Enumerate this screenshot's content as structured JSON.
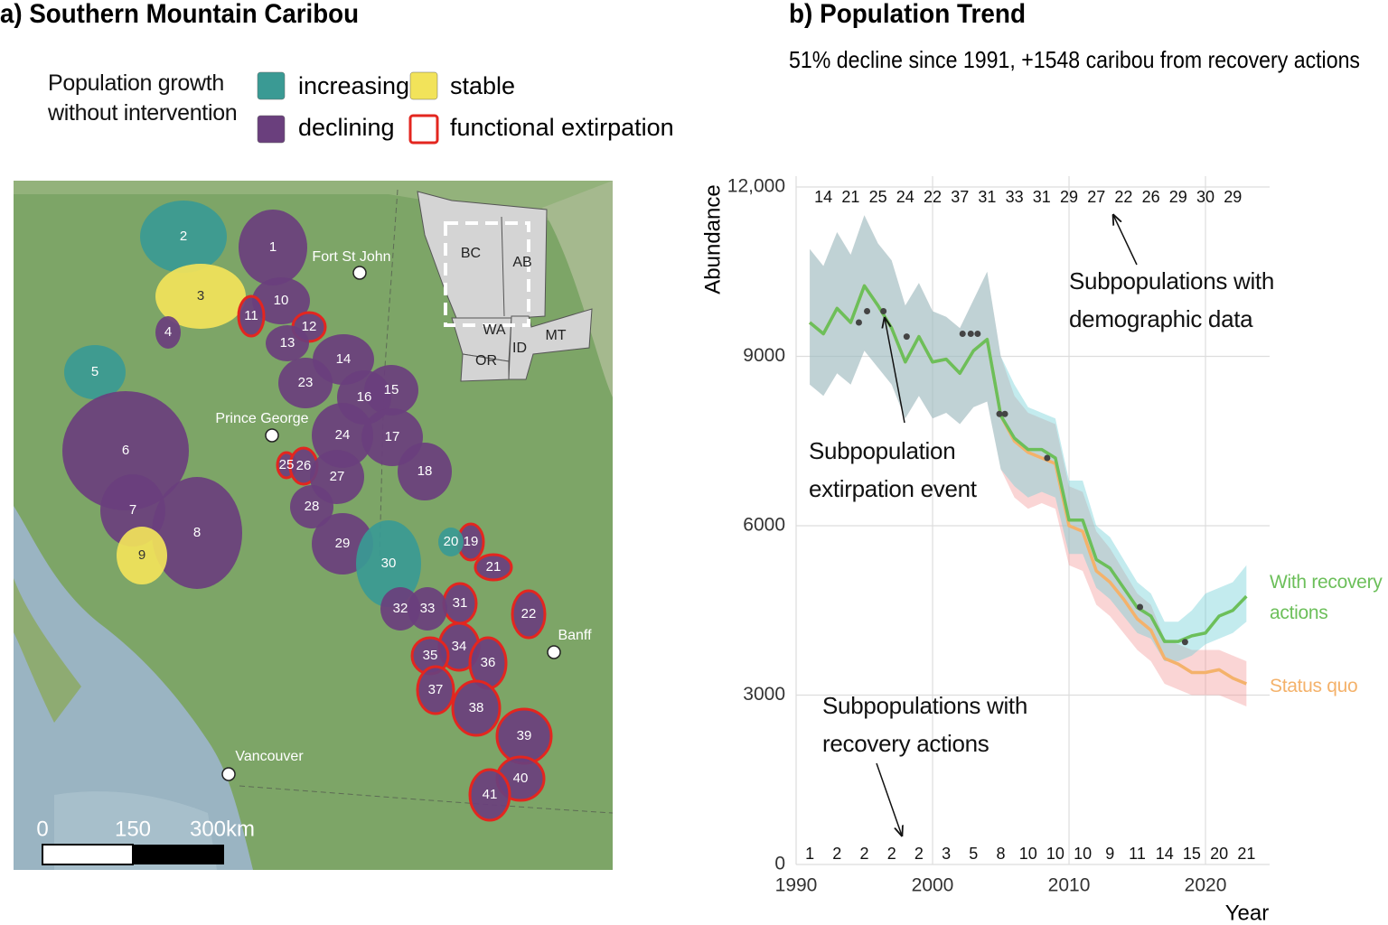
{
  "map": {
    "title": "a) Southern Mountain Caribou",
    "legend_title": "Population growth without intervention",
    "legend": [
      {
        "label": "increasing",
        "color": "#3a9a94"
      },
      {
        "label": "stable",
        "color": "#f2e35a"
      },
      {
        "label": "declining",
        "color": "#6a3f7d"
      },
      {
        "label": "functional extirpation",
        "color": "#e3261f"
      }
    ],
    "regions": [
      {
        "label": "1",
        "status": "declining"
      },
      {
        "label": "2",
        "status": "increasing"
      },
      {
        "label": "3",
        "status": "stable"
      },
      {
        "label": "4",
        "status": "declining"
      },
      {
        "label": "5",
        "status": "increasing"
      },
      {
        "label": "6",
        "status": "declining"
      },
      {
        "label": "7",
        "status": "declining"
      },
      {
        "label": "8",
        "status": "declining"
      },
      {
        "label": "9",
        "status": "stable"
      },
      {
        "label": "10",
        "status": "declining"
      },
      {
        "label": "11",
        "status": "functional extirpation"
      },
      {
        "label": "12",
        "status": "functional extirpation"
      },
      {
        "label": "13",
        "status": "declining"
      },
      {
        "label": "14",
        "status": "declining"
      },
      {
        "label": "15",
        "status": "declining"
      },
      {
        "label": "16",
        "status": "declining"
      },
      {
        "label": "17",
        "status": "declining"
      },
      {
        "label": "18",
        "status": "declining"
      },
      {
        "label": "19",
        "status": "functional extirpation"
      },
      {
        "label": "20",
        "status": "increasing"
      },
      {
        "label": "21",
        "status": "functional extirpation"
      },
      {
        "label": "22",
        "status": "functional extirpation"
      },
      {
        "label": "23",
        "status": "declining"
      },
      {
        "label": "24",
        "status": "declining"
      },
      {
        "label": "25",
        "status": "functional extirpation"
      },
      {
        "label": "26",
        "status": "functional extirpation"
      },
      {
        "label": "27",
        "status": "declining"
      },
      {
        "label": "28",
        "status": "declining"
      },
      {
        "label": "29",
        "status": "declining"
      },
      {
        "label": "30",
        "status": "increasing"
      },
      {
        "label": "31",
        "status": "functional extirpation"
      },
      {
        "label": "32",
        "status": "declining"
      },
      {
        "label": "33",
        "status": "declining"
      },
      {
        "label": "34",
        "status": "functional extirpation"
      },
      {
        "label": "35",
        "status": "functional extirpation"
      },
      {
        "label": "36",
        "status": "functional extirpation"
      },
      {
        "label": "37",
        "status": "functional extirpation"
      },
      {
        "label": "38",
        "status": "functional extirpation"
      },
      {
        "label": "39",
        "status": "functional extirpation"
      },
      {
        "label": "40",
        "status": "functional extirpation"
      },
      {
        "label": "41",
        "status": "functional extirpation"
      }
    ],
    "cities": [
      "Fort St John",
      "Prince George",
      "Vancouver",
      "Banff"
    ],
    "inset_labels": [
      "BC",
      "AB",
      "WA",
      "ID",
      "MT",
      "OR"
    ],
    "scale_labels": [
      "0",
      "150",
      "300km"
    ]
  },
  "chart_data": {
    "type": "line",
    "title": "b) Population Trend",
    "subtitle": "51% decline since 1991, +1548 caribou from recovery actions",
    "y_label": "Abundance",
    "x_label": "Year",
    "xlim": [
      1990,
      2024.7
    ],
    "ylim": [
      0,
      12000
    ],
    "xticks": [
      1990,
      2000,
      2010,
      2020
    ],
    "yticks": [
      0,
      3000,
      6000,
      9000,
      {
        "value": 12000,
        "label": "12,000"
      }
    ],
    "grid": true,
    "x": [
      1991,
      1992,
      1993,
      1994,
      1995,
      1996,
      1997,
      1998,
      1999,
      2000,
      2001,
      2002,
      2003,
      2004,
      2005,
      2006,
      2007,
      2008,
      2009,
      2010,
      2011,
      2012,
      2013,
      2014,
      2015,
      2016,
      2017,
      2018,
      2019,
      2020,
      2021,
      2022,
      2023
    ],
    "series": [
      {
        "name": "With recovery actions",
        "color": "#6cbf5a",
        "band_color": "#6fcfd6",
        "values": [
          9600,
          9400,
          9850,
          9600,
          10250,
          9900,
          9500,
          8900,
          9350,
          8900,
          8950,
          8700,
          9100,
          9300,
          7950,
          7550,
          7350,
          7350,
          7200,
          6100,
          6100,
          5400,
          5250,
          4900,
          4550,
          4400,
          3950,
          3950,
          4050,
          4100,
          4400,
          4500,
          4750
        ],
        "upper": [
          10900,
          10600,
          11200,
          10800,
          11500,
          11000,
          10700,
          9900,
          10300,
          9800,
          9700,
          9500,
          10000,
          10500,
          9000,
          8500,
          8100,
          8000,
          7900,
          6800,
          6800,
          6000,
          5800,
          5400,
          5000,
          4800,
          4300,
          4300,
          4500,
          4800,
          4900,
          5000,
          5300
        ],
        "lower": [
          8500,
          8300,
          8700,
          8500,
          9100,
          8800,
          8500,
          7900,
          8300,
          7900,
          8000,
          7800,
          8100,
          8200,
          7000,
          6700,
          6500,
          6600,
          6500,
          5500,
          5500,
          4900,
          4700,
          4400,
          4100,
          4000,
          3600,
          3600,
          3700,
          3900,
          4000,
          4100,
          4300
        ]
      },
      {
        "name": "Status quo",
        "color": "#f4b26b",
        "band_color": "#f29a9a",
        "values": [
          9600,
          9400,
          9850,
          9600,
          10250,
          9900,
          9500,
          8900,
          9350,
          8900,
          8950,
          8700,
          9100,
          9300,
          7950,
          7500,
          7300,
          7200,
          7100,
          6000,
          5900,
          5200,
          5000,
          4700,
          4350,
          4150,
          3650,
          3550,
          3400,
          3400,
          3450,
          3300,
          3200
        ],
        "upper": [
          10900,
          10600,
          11200,
          10800,
          11500,
          11000,
          10700,
          9900,
          10300,
          9800,
          9700,
          9500,
          10000,
          10500,
          9000,
          8300,
          8000,
          7900,
          7800,
          6700,
          6600,
          5900,
          5600,
          5200,
          4800,
          4600,
          4000,
          3900,
          3800,
          3800,
          3800,
          3700,
          3600
        ],
        "lower": [
          8500,
          8300,
          8700,
          8500,
          9100,
          8800,
          8500,
          7900,
          8300,
          7900,
          8000,
          7800,
          8100,
          8200,
          7000,
          6500,
          6300,
          6400,
          6300,
          5300,
          5200,
          4600,
          4400,
          4100,
          3800,
          3600,
          3200,
          3100,
          3000,
          3000,
          3000,
          2900,
          2800
        ]
      }
    ],
    "events": {
      "color": "#444444",
      "x": [
        1994.6,
        1995.2,
        1996.4,
        1998.1,
        2002.2,
        2002.8,
        2003.3,
        2004.9,
        2005.3,
        2008.4,
        2015.2,
        2018.5
      ],
      "y": [
        9600,
        9800,
        9800,
        9350,
        9400,
        9400,
        9400,
        7980,
        7980,
        7200,
        4560,
        3940
      ]
    },
    "demographic_counts": {
      "x": [
        1992,
        1994,
        1996,
        1998,
        2000,
        2002,
        2004,
        2006,
        2008,
        2010,
        2012,
        2014,
        2016,
        2018,
        2020,
        2022
      ],
      "values": [
        14,
        21,
        25,
        24,
        22,
        37,
        31,
        33,
        31,
        29,
        27,
        22,
        26,
        29,
        30,
        29
      ]
    },
    "recovery_counts": {
      "x": [
        1991,
        1993,
        1995,
        1997,
        1999,
        2001,
        2003,
        2005,
        2007,
        2009,
        2011,
        2013,
        2015,
        2017,
        2019,
        2021,
        2023
      ],
      "values": [
        1,
        2,
        2,
        2,
        2,
        3,
        5,
        8,
        10,
        10,
        10,
        9,
        11,
        14,
        15,
        20,
        21
      ]
    },
    "annotations": [
      "Subpopulations with demographic data",
      "Subpopulation extirpation event",
      "Subpopulations with recovery actions"
    ]
  }
}
